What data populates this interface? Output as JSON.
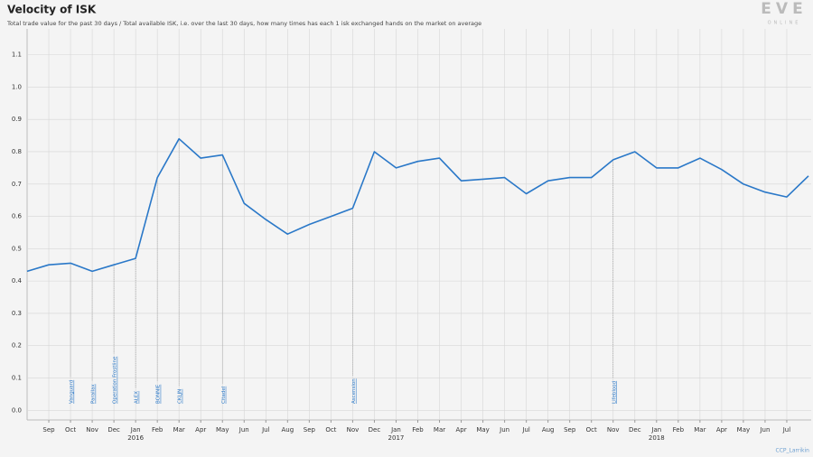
{
  "chart_data": {
    "type": "line",
    "title": "Velocity of ISK",
    "subtitle": "Total trade value for the past 30 days / Total available ISK, i.e. over the last 30 days, how many times has each 1 isk exchanged hands on the market on average",
    "logo": {
      "main": "EVE",
      "sub": "ONLINE"
    },
    "credit": "CCP_Larrikin",
    "x": [
      "2015-08",
      "2015-09",
      "2015-10",
      "2015-11",
      "2015-12",
      "2016-01",
      "2016-02",
      "2016-03",
      "2016-04",
      "2016-05",
      "2016-06",
      "2016-07",
      "2016-08",
      "2016-09",
      "2016-10",
      "2016-11",
      "2016-12",
      "2017-01",
      "2017-02",
      "2017-03",
      "2017-04",
      "2017-05",
      "2017-06",
      "2017-07",
      "2017-08",
      "2017-09",
      "2017-10",
      "2017-11",
      "2017-12",
      "2018-01",
      "2018-02",
      "2018-03",
      "2018-04",
      "2018-05",
      "2018-06",
      "2018-07",
      "2018-08"
    ],
    "series": [
      {
        "name": "Velocity of ISK",
        "color": "#2a78c8",
        "values": [
          0.43,
          0.45,
          0.455,
          0.43,
          0.45,
          0.47,
          0.72,
          0.84,
          0.78,
          0.79,
          0.64,
          0.59,
          0.545,
          0.575,
          0.6,
          0.625,
          0.8,
          0.75,
          0.77,
          0.78,
          0.71,
          0.715,
          0.72,
          0.67,
          0.71,
          0.72,
          0.72,
          0.775,
          0.8,
          0.75,
          0.75,
          0.78,
          0.745,
          0.7,
          0.675,
          0.66,
          0.725
        ]
      }
    ],
    "xlim": [
      "2015-08",
      "2018-08"
    ],
    "xticks": [
      {
        "value": "2015-09",
        "label": "Sep"
      },
      {
        "value": "2015-10",
        "label": "Oct"
      },
      {
        "value": "2015-11",
        "label": "Nov"
      },
      {
        "value": "2015-12",
        "label": "Dec"
      },
      {
        "value": "2016-01",
        "label": "Jan"
      },
      {
        "value": "2016-02",
        "label": "Feb"
      },
      {
        "value": "2016-03",
        "label": "Mar"
      },
      {
        "value": "2016-04",
        "label": "Apr"
      },
      {
        "value": "2016-05",
        "label": "May"
      },
      {
        "value": "2016-06",
        "label": "Jun"
      },
      {
        "value": "2016-07",
        "label": "Jul"
      },
      {
        "value": "2016-08",
        "label": "Aug"
      },
      {
        "value": "2016-09",
        "label": "Sep"
      },
      {
        "value": "2016-10",
        "label": "Oct"
      },
      {
        "value": "2016-11",
        "label": "Nov"
      },
      {
        "value": "2016-12",
        "label": "Dec"
      },
      {
        "value": "2017-01",
        "label": "Jan"
      },
      {
        "value": "2017-02",
        "label": "Feb"
      },
      {
        "value": "2017-03",
        "label": "Mar"
      },
      {
        "value": "2017-04",
        "label": "Apr"
      },
      {
        "value": "2017-05",
        "label": "May"
      },
      {
        "value": "2017-06",
        "label": "Jun"
      },
      {
        "value": "2017-07",
        "label": "Jul"
      },
      {
        "value": "2017-08",
        "label": "Aug"
      },
      {
        "value": "2017-09",
        "label": "Sep"
      },
      {
        "value": "2017-10",
        "label": "Oct"
      },
      {
        "value": "2017-11",
        "label": "Nov"
      },
      {
        "value": "2017-12",
        "label": "Dec"
      },
      {
        "value": "2018-01",
        "label": "Jan"
      },
      {
        "value": "2018-02",
        "label": "Feb"
      },
      {
        "value": "2018-03",
        "label": "Mar"
      },
      {
        "value": "2018-04",
        "label": "Apr"
      },
      {
        "value": "2018-05",
        "label": "May"
      },
      {
        "value": "2018-06",
        "label": "Jun"
      },
      {
        "value": "2018-07",
        "label": "Jul"
      }
    ],
    "x_year_labels": [
      {
        "value": "2016-01",
        "label": "2016"
      },
      {
        "value": "2017-01",
        "label": "2017"
      },
      {
        "value": "2018-01",
        "label": "2018"
      }
    ],
    "ylim": [
      -0.03,
      1.18
    ],
    "yticks": [
      {
        "value": 0,
        "label": "0.0"
      },
      0.1,
      0.2,
      0.3,
      0.4,
      0.5,
      0.6,
      0.7,
      0.8,
      0.9,
      {
        "value": 1,
        "label": "1.0"
      },
      1.1
    ],
    "grid": true,
    "annotations": [
      {
        "x": "2015-10",
        "label": "Vanguard"
      },
      {
        "x": "2015-11",
        "label": "Parallax"
      },
      {
        "x": "2015-12",
        "label": "Operation Frostline"
      },
      {
        "x": "2016-01",
        "label": "ALEX"
      },
      {
        "x": "2016-02",
        "label": "BONNIE"
      },
      {
        "x": "2016-03",
        "label": "CKLJN"
      },
      {
        "x": "2016-05",
        "label": "Citadel"
      },
      {
        "x": "2016-11",
        "label": "Ascension"
      },
      {
        "x": "2017-11",
        "label": "Lifeblood"
      }
    ]
  }
}
